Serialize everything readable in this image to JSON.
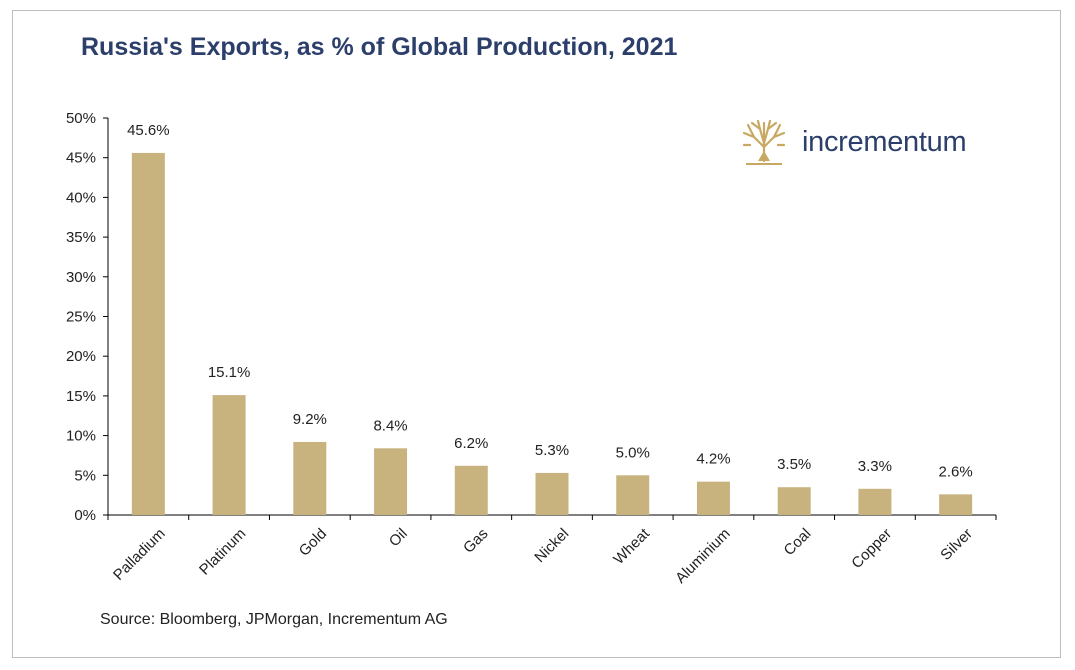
{
  "chart_data": {
    "type": "bar",
    "title": "Russia's Exports, as % of Global Production, 2021",
    "categories": [
      "Palladium",
      "Platinum",
      "Gold",
      "Oil",
      "Gas",
      "Nickel",
      "Wheat",
      "Aluminium",
      "Coal",
      "Copper",
      "Silver"
    ],
    "values": [
      45.6,
      15.1,
      9.2,
      8.4,
      6.2,
      5.3,
      5.0,
      4.2,
      3.5,
      3.3,
      2.6
    ],
    "data_labels": [
      "45.6%",
      "15.1%",
      "9.2%",
      "8.4%",
      "6.2%",
      "5.3%",
      "5.0%",
      "4.2%",
      "3.5%",
      "3.3%",
      "2.6%"
    ],
    "ylim": [
      0,
      50
    ],
    "yticks": [
      0,
      5,
      10,
      15,
      20,
      25,
      30,
      35,
      40,
      45,
      50
    ],
    "ytick_labels": [
      "0%",
      "5%",
      "10%",
      "15%",
      "20%",
      "25%",
      "30%",
      "35%",
      "40%",
      "45%",
      "50%"
    ],
    "xlabel": "",
    "ylabel": "",
    "grid": false,
    "legend": "none",
    "bar_color": "#c8b37e",
    "source": "Source: Bloomberg, JPMorgan, Incrementum AG"
  },
  "brand": {
    "name": "incrementum",
    "logo_icon": "tree-icon",
    "logo_color": "#c8a862",
    "text_color": "#2c3f6b"
  }
}
